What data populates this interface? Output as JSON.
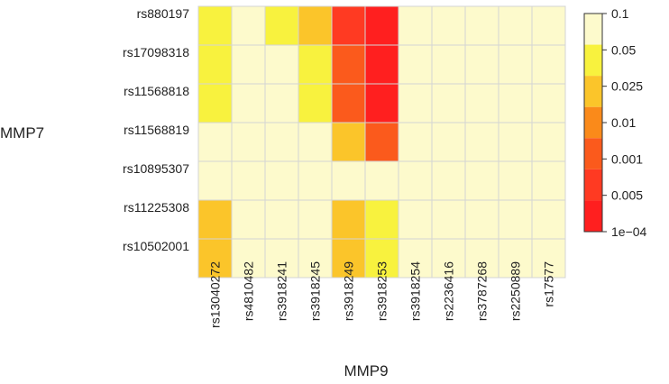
{
  "chart_data": {
    "type": "heatmap",
    "title": "",
    "xlabel": "MMP9",
    "ylabel": "MMP7",
    "x_categories": [
      "rs13040272",
      "rs4810482",
      "rs3918241",
      "rs3918245",
      "rs3918249",
      "rs3918253",
      "rs3918254",
      "rs2236416",
      "rs3787268",
      "rs2250889",
      "rs17577"
    ],
    "y_categories": [
      "rs880197",
      "rs17098318",
      "rs11568818",
      "rs11568819",
      "rs10895307",
      "rs11225308",
      "rs10502001"
    ],
    "bin_labels": [
      "1e−04",
      "0.005",
      "0.001",
      "0.01",
      "0.025",
      "0.05",
      "0.1"
    ],
    "bin_colors": [
      "#ff1f1f",
      "#ff3a22",
      "#fb5a1c",
      "#fa8a1a",
      "#fbc52a",
      "#f8f23e",
      "#fdfacc"
    ],
    "value_bins": [
      [
        5,
        6,
        5,
        4,
        1,
        0,
        6,
        6,
        6,
        6,
        6
      ],
      [
        5,
        6,
        6,
        5,
        2,
        0,
        6,
        6,
        6,
        6,
        6
      ],
      [
        5,
        6,
        6,
        5,
        2,
        0,
        6,
        6,
        6,
        6,
        6
      ],
      [
        6,
        6,
        6,
        6,
        4,
        2,
        6,
        6,
        6,
        6,
        6
      ],
      [
        6,
        6,
        6,
        6,
        6,
        6,
        6,
        6,
        6,
        6,
        6
      ],
      [
        4,
        6,
        6,
        6,
        4,
        5,
        6,
        6,
        6,
        6,
        6
      ],
      [
        4,
        6,
        6,
        6,
        4,
        5,
        6,
        6,
        6,
        6,
        6
      ]
    ],
    "grid": true,
    "legend_placement": "right"
  }
}
